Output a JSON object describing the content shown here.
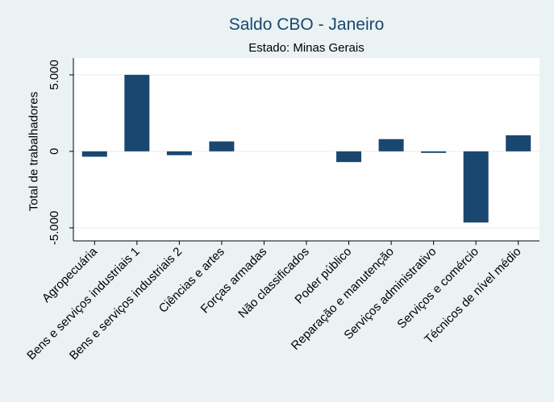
{
  "chart_data": {
    "type": "bar",
    "title": "Saldo CBO - Janeiro",
    "subtitle": "Estado: Minas Gerais",
    "xlabel": "",
    "ylabel": "Total de trabalhadores",
    "categories": [
      "Agropecuária",
      "Bens e serviços industriais 1",
      "Bens e serviços industriais 2",
      "Ciências e artes",
      "Forças armadas",
      "Não classificados",
      "Poder público",
      "Reparação e manutenção",
      "Serviços administrativo",
      "Serviços e comércio",
      "Técnicos de nível médio"
    ],
    "values": [
      -350,
      5000,
      -250,
      650,
      0,
      0,
      -700,
      800,
      -100,
      -4650,
      1050
    ],
    "ylim": [
      -5850,
      6100
    ],
    "yticks": [
      -5000,
      0,
      5000
    ],
    "ytick_labels": [
      "-5.000",
      "0",
      "5.000"
    ],
    "grid": true,
    "colors": {
      "bar": "#1a476f",
      "background": "#eaf2f3",
      "plot": "#ffffff",
      "grid": "#eaf2f3"
    }
  }
}
